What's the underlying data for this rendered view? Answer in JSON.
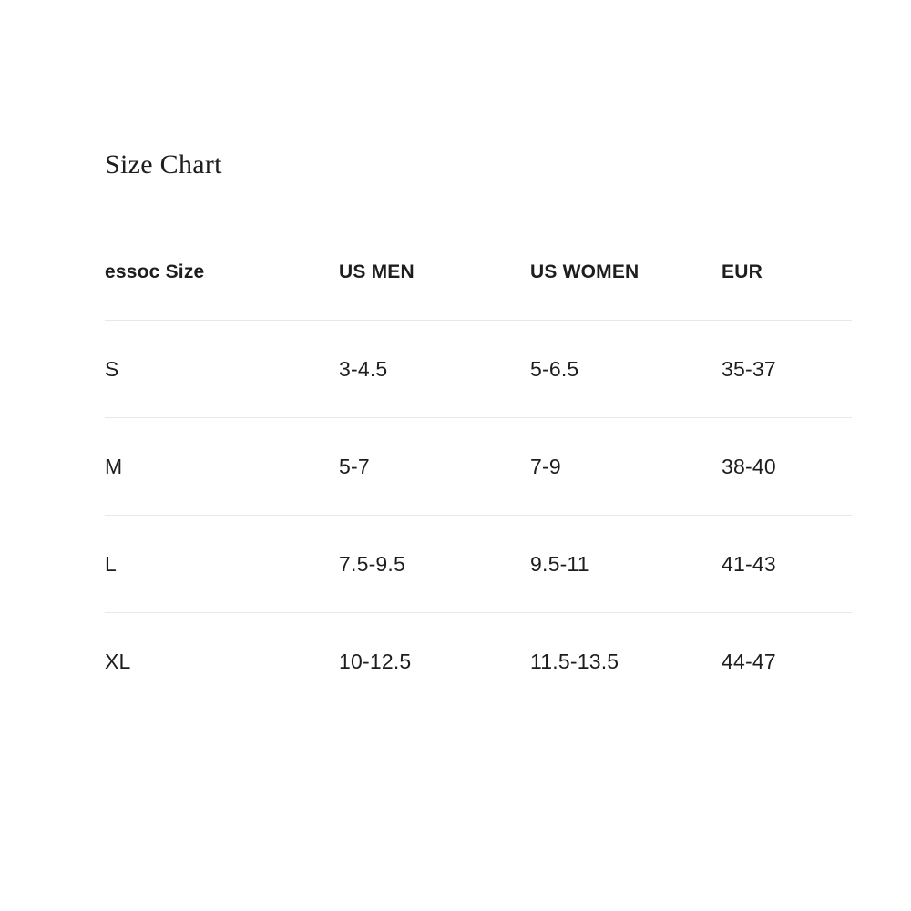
{
  "title": "Size Chart",
  "table": {
    "headers": {
      "size": "essoc Size",
      "us_men": "US MEN",
      "us_women": "US WOMEN",
      "eur": "EUR"
    },
    "rows": [
      {
        "size": "S",
        "us_men": "3-4.5",
        "us_women": "5-6.5",
        "eur": "35-37"
      },
      {
        "size": "M",
        "us_men": "5-7",
        "us_women": "7-9",
        "eur": "38-40"
      },
      {
        "size": "L",
        "us_men": "7.5-9.5",
        "us_women": "9.5-11",
        "eur": "41-43"
      },
      {
        "size": "XL",
        "us_men": "10-12.5",
        "us_women": "11.5-13.5",
        "eur": "44-47"
      }
    ]
  },
  "colors": {
    "text": "#1d1d1d",
    "title_text": "#1e1e1e",
    "divider": "#e8e8e8",
    "background": "#ffffff"
  }
}
